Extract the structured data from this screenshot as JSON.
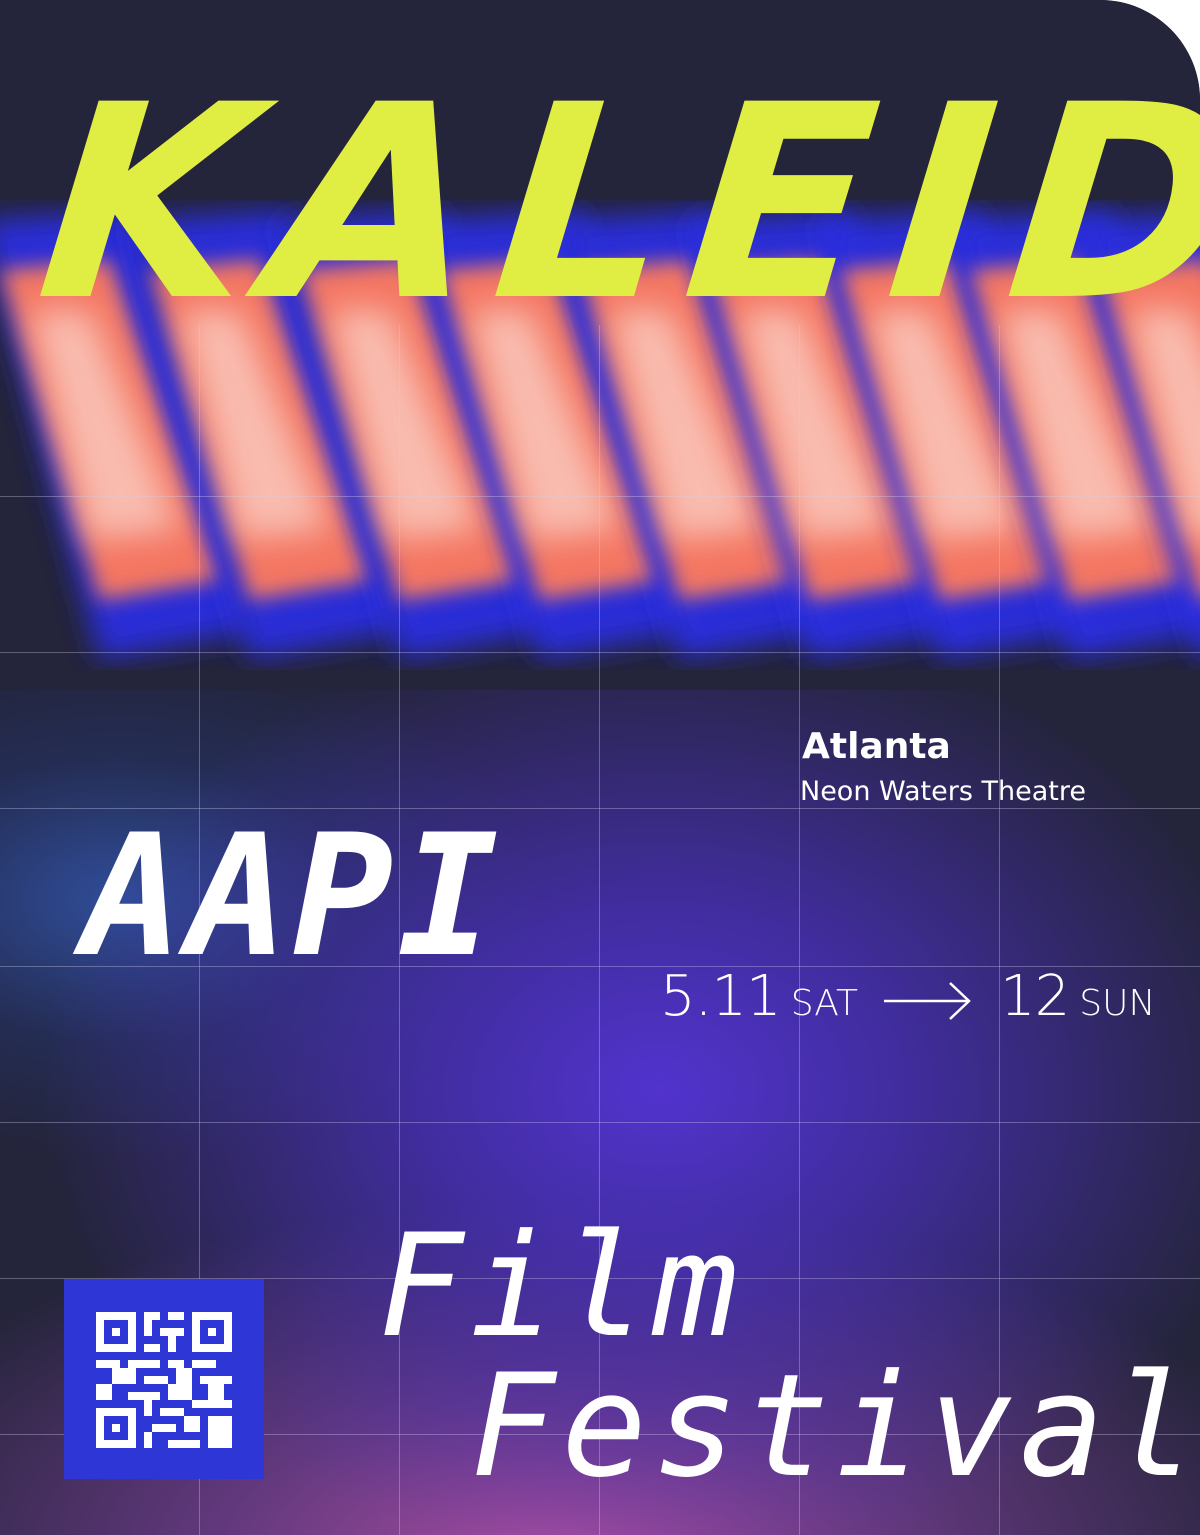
{
  "poster": {
    "title": "KALEIDO",
    "city": "Atlanta",
    "venue": "Neon Waters Theatre",
    "heritage": "AAPI",
    "dates": {
      "start_num": "5.11",
      "start_day": "SAT",
      "end_num": "12",
      "end_day": "SUN",
      "arrow_icon": "long-right-arrow-icon"
    },
    "film_word": "Film",
    "festival_word": "Festival",
    "qr_icon": "qr-code-icon"
  },
  "colors": {
    "background": "#24243a",
    "title": "#e0ee44",
    "qr_background": "#2f36d6",
    "streak_orange": "#ff7a5c",
    "streak_blue": "#2a2ee0",
    "glow_violet": "#5434d6",
    "glow_magenta": "#b050a8"
  }
}
